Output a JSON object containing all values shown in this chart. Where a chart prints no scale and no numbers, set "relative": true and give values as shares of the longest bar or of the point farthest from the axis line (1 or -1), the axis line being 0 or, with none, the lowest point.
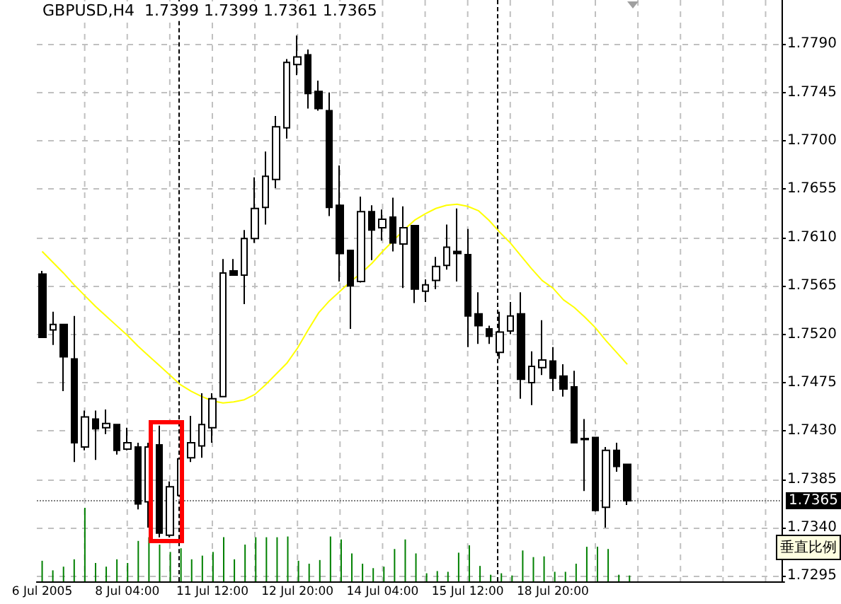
{
  "chart_data": [
    {
      "type": "candlestick",
      "title": "GBPUSD,H4  1.7399 1.7399 1.7361 1.7365",
      "categories": [
        "6 Jul 2005",
        null,
        null,
        null,
        null,
        null,
        null,
        null,
        "8 Jul 04:00",
        null,
        null,
        null,
        null,
        null,
        null,
        null,
        "11 Jul 12:00",
        null,
        null,
        null,
        null,
        null,
        null,
        null,
        "12 Jul 20:00",
        null,
        null,
        null,
        null,
        null,
        null,
        null,
        "14 Jul 04:00",
        null,
        null,
        null,
        null,
        null,
        null,
        null,
        "15 Jul 12:00",
        null,
        null,
        null,
        null,
        null,
        null,
        null,
        "18 Jul 20:00",
        null,
        null,
        null,
        null,
        null,
        null,
        null,
        null,
        null,
        null,
        null,
        null,
        null,
        null,
        null,
        null,
        null,
        null,
        null,
        null,
        null
      ],
      "series": [
        {
          "type": "candlestick",
          "color": "#000000",
          "ohlc": [
            [
              1.7576,
              1.7579,
              1.7517,
              1.7517
            ],
            [
              1.7524,
              1.7541,
              1.751,
              1.7529
            ],
            [
              1.7529,
              1.7529,
              1.7467,
              1.7499
            ],
            [
              1.7497,
              1.7537,
              1.7401,
              1.7419
            ],
            [
              1.7415,
              1.7449,
              1.7412,
              1.7443
            ],
            [
              1.7441,
              1.7449,
              1.7403,
              1.7432
            ],
            [
              1.7433,
              1.745,
              1.7427,
              1.7437
            ],
            [
              1.7436,
              1.7436,
              1.7408,
              1.7412
            ],
            [
              1.7413,
              1.7433,
              1.7412,
              1.7419
            ],
            [
              1.7415,
              1.7419,
              1.7357,
              1.7362
            ],
            [
              1.7364,
              1.7419,
              1.734,
              1.7415
            ],
            [
              1.7417,
              1.7435,
              1.7331,
              1.7335
            ],
            [
              1.7333,
              1.7383,
              1.7331,
              1.7378
            ],
            [
              1.737,
              1.741,
              1.7353,
              1.7404
            ],
            [
              1.7405,
              1.7444,
              1.7401,
              1.7419
            ],
            [
              1.7416,
              1.7465,
              1.7405,
              1.7436
            ],
            [
              1.7433,
              1.7465,
              1.7419,
              1.746
            ],
            [
              1.7462,
              1.759,
              1.7462,
              1.7577
            ],
            [
              1.7579,
              1.759,
              1.7575,
              1.7575
            ],
            [
              1.7575,
              1.7617,
              1.7548,
              1.7609
            ],
            [
              1.7609,
              1.7666,
              1.7605,
              1.7637
            ],
            [
              1.7638,
              1.769,
              1.7622,
              1.7667
            ],
            [
              1.7664,
              1.7723,
              1.7656,
              1.7713
            ],
            [
              1.7712,
              1.7776,
              1.7702,
              1.7773
            ],
            [
              1.7771,
              1.7798,
              1.7761,
              1.7778
            ],
            [
              1.778,
              1.7785,
              1.773,
              1.7744
            ],
            [
              1.7746,
              1.7756,
              1.7728,
              1.773
            ],
            [
              1.7728,
              1.7745,
              1.763,
              1.7638
            ],
            [
              1.764,
              1.7677,
              1.7569,
              1.7595
            ],
            [
              1.7598,
              1.7598,
              1.7525,
              1.7565
            ],
            [
              1.7569,
              1.7648,
              1.7568,
              1.7634
            ],
            [
              1.7634,
              1.764,
              1.7589,
              1.7617
            ],
            [
              1.7619,
              1.7636,
              1.7607,
              1.7627
            ],
            [
              1.7629,
              1.7647,
              1.7597,
              1.7605
            ],
            [
              1.7604,
              1.7639,
              1.7563,
              1.7619
            ],
            [
              1.7621,
              1.7621,
              1.7549,
              1.7562
            ],
            [
              1.756,
              1.7571,
              1.755,
              1.7566
            ],
            [
              1.757,
              1.7592,
              1.7562,
              1.7583
            ],
            [
              1.7584,
              1.7622,
              1.758,
              1.7601
            ],
            [
              1.7597,
              1.7637,
              1.7569,
              1.7595
            ],
            [
              1.7594,
              1.7618,
              1.7508,
              1.7537
            ],
            [
              1.7539,
              1.7559,
              1.7511,
              1.7528
            ],
            [
              1.7525,
              1.7528,
              1.7511,
              1.7518
            ],
            [
              1.7503,
              1.7541,
              1.7497,
              1.7522
            ],
            [
              1.7523,
              1.755,
              1.752,
              1.7537
            ],
            [
              1.7539,
              1.7559,
              1.746,
              1.7478
            ],
            [
              1.7475,
              1.7504,
              1.7454,
              1.749
            ],
            [
              1.7489,
              1.7533,
              1.7482,
              1.7496
            ],
            [
              1.7495,
              1.7508,
              1.7467,
              1.7479
            ],
            [
              1.7481,
              1.7492,
              1.7462,
              1.7469
            ],
            [
              1.7471,
              1.7486,
              1.7419,
              1.7419
            ],
            [
              1.7423,
              1.7441,
              1.7374,
              1.7422
            ],
            [
              1.7424,
              1.7424,
              1.7355,
              1.7356
            ],
            [
              1.7359,
              1.7415,
              1.734,
              1.7412
            ],
            [
              1.7412,
              1.7419,
              1.7392,
              1.7397
            ],
            [
              1.7399,
              1.7399,
              1.7361,
              1.7365
            ],
            null,
            null,
            null,
            null,
            null,
            null,
            null,
            null,
            null,
            null,
            null,
            null,
            null,
            null
          ]
        },
        {
          "type": "line",
          "color": "#ffff00",
          "values": [
            1.7597,
            1.7587,
            1.7577,
            1.7566,
            1.7556,
            1.7546,
            1.7537,
            1.7528,
            1.7519,
            1.7509,
            1.75,
            1.7491,
            1.7482,
            1.7473,
            1.7467,
            1.7462,
            1.7458,
            1.7456,
            1.7457,
            1.7459,
            1.7464,
            1.7473,
            1.7483,
            1.7493,
            1.7507,
            1.7524,
            1.754,
            1.7551,
            1.756,
            1.7569,
            1.7577,
            1.7586,
            1.7597,
            1.7607,
            1.7617,
            1.7626,
            1.7632,
            1.7637,
            1.764,
            1.7641,
            1.7639,
            1.7635,
            1.7626,
            1.7615,
            1.7605,
            1.7593,
            1.7581,
            1.757,
            1.7563,
            1.7552,
            1.7545,
            1.7536,
            1.7526,
            1.7514,
            1.7503,
            1.7492,
            null,
            null,
            null,
            null,
            null,
            null,
            null,
            null,
            null,
            null,
            null,
            null,
            null,
            null
          ]
        }
      ],
      "ylim": [
        1.729,
        1.7831
      ],
      "yticks": [
        1.7295,
        {
          "value": 1.734,
          "label": "1.7340"
        },
        1.7385,
        {
          "value": 1.743,
          "label": "1.7430"
        },
        1.7475,
        {
          "value": 1.752,
          "label": "1.7520"
        },
        1.7565,
        {
          "value": 1.761,
          "label": "1.7610"
        },
        1.7655,
        {
          "value": 1.77,
          "label": "1.7700"
        },
        1.7745,
        {
          "value": 1.779,
          "label": "1.7790"
        }
      ],
      "grid": true,
      "marker": "none",
      "ref_lines": [
        {
          "axis": "y",
          "value": 1.7365,
          "label": "1.7365",
          "color": "#808080",
          "line_style": "dotted"
        }
      ],
      "annotations": [
        "垂直比例"
      ]
    },
    {
      "type": "bar",
      "relative": true,
      "color": "#008000",
      "categories": [
        null,
        null,
        null,
        null,
        null,
        null,
        null,
        null,
        null,
        null,
        null,
        null,
        null,
        null,
        null,
        null,
        null,
        null,
        null,
        null,
        null,
        null,
        null,
        null,
        null,
        null,
        null,
        null,
        null,
        null,
        null,
        null,
        null,
        null,
        null,
        null,
        null,
        null,
        null,
        null,
        null,
        null,
        null,
        null,
        null,
        null,
        null,
        null,
        null,
        null,
        null,
        null,
        null,
        null,
        null,
        null,
        null,
        null,
        null,
        null,
        null,
        null,
        null,
        null,
        null,
        null,
        null,
        null,
        null,
        null
      ],
      "values": [
        0.28,
        0.15,
        0.2,
        0.3,
        1,
        0.25,
        0.2,
        0.3,
        0.25,
        0.55,
        0.6,
        0.5,
        0.4,
        0.45,
        0.3,
        0.35,
        0.4,
        0.6,
        0.3,
        0.5,
        0.6,
        0.6,
        0.6,
        0.61,
        0.28,
        0.24,
        0.29,
        0.61,
        0.57,
        0.38,
        0.24,
        0.18,
        0.2,
        0.44,
        0.57,
        0.38,
        0.11,
        0.14,
        0.13,
        0.39,
        0.49,
        0.21,
        0.09,
        0.11,
        0.08,
        0.42,
        0.33,
        0.34,
        0.13,
        0.13,
        0.24,
        0.47,
        0.47,
        0.44,
        0.09,
        0.08,
        null,
        null,
        null,
        null,
        null,
        null,
        null,
        null,
        null,
        null,
        null,
        null,
        null,
        null
      ]
    }
  ]
}
